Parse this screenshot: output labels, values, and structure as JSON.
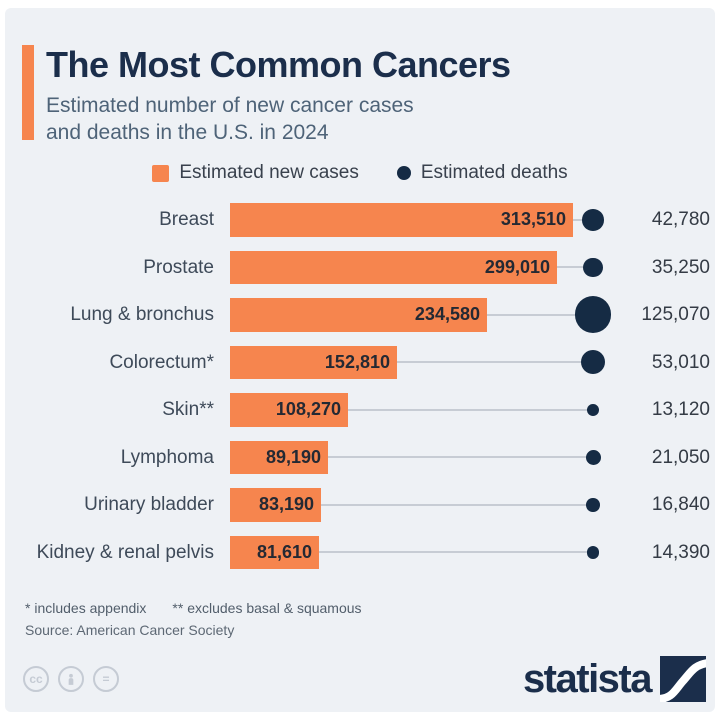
{
  "header": {
    "title": "The Most Common Cancers",
    "subtitle_line1": "Estimated number of new cancer cases",
    "subtitle_line2": "and deaths in the U.S. in 2024"
  },
  "legend": {
    "new_cases_label": "Estimated new cases",
    "deaths_label": "Estimated deaths"
  },
  "chart_data": {
    "type": "bar",
    "orientation": "horizontal",
    "title": "The Most Common Cancers",
    "subtitle": "Estimated number of new cancer cases and deaths in the U.S. in 2024",
    "legend_position": "top",
    "grid": false,
    "categories": [
      "Breast",
      "Prostate",
      "Lung & bronchus",
      "Colorectum*",
      "Skin**",
      "Lymphoma",
      "Urinary bladder",
      "Kidney & renal pelvis"
    ],
    "series": [
      {
        "name": "Estimated new cases",
        "encoding": "bar-length",
        "color": "#f6854e",
        "values": [
          313510,
          299010,
          234580,
          152810,
          108270,
          89190,
          83190,
          81610
        ],
        "labels": [
          "313,510",
          "299,010",
          "234,580",
          "152,810",
          "108,270",
          "89,190",
          "83,190",
          "81,610"
        ]
      },
      {
        "name": "Estimated deaths",
        "encoding": "dot-area",
        "color": "#152b44",
        "values": [
          42780,
          35250,
          125070,
          53010,
          13120,
          21050,
          16840,
          14390
        ],
        "labels": [
          "42,780",
          "35,250",
          "125,070",
          "53,010",
          "13,120",
          "21,050",
          "16,840",
          "14,390"
        ]
      }
    ],
    "xlim": [
      0,
      313510
    ]
  },
  "footnotes": {
    "note1": "* includes appendix",
    "note2": "** excludes basal & squamous",
    "source": "Source: American Cancer Society"
  },
  "branding": {
    "logo_text": "statista",
    "cc_badge_1": "cc",
    "cc_badge_3": "="
  },
  "colors": {
    "panel_bg": "#eef1f5",
    "accent_orange": "#f6854e",
    "brand_navy": "#1b2e4b",
    "dot_navy": "#152b44",
    "subtitle_steel": "#4e6378",
    "connector_gray": "#c7ccd4"
  }
}
